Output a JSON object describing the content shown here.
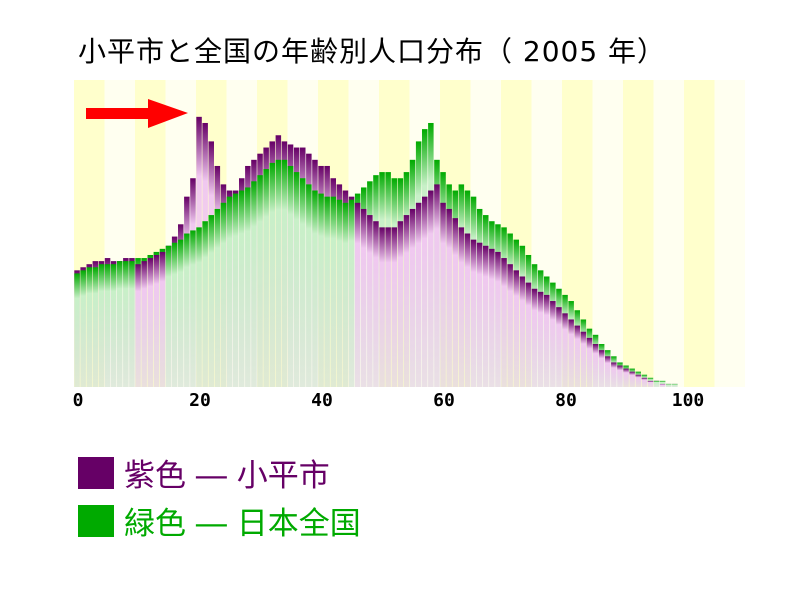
{
  "title": "小平市と全国の年齢別人口分布（ 2005 年）",
  "legend": [
    {
      "text": "紫色 ― 小平市",
      "color": "#660066"
    },
    {
      "text": "緑色 ― 日本全国",
      "color": "#00aa00"
    }
  ],
  "chart_data": {
    "type": "bar",
    "x_ticks": [
      0,
      20,
      40,
      60,
      80,
      100
    ],
    "x_tick_labels": [
      "0",
      "20",
      "40",
      "60",
      "80",
      "100"
    ],
    "xlim": [
      0,
      110
    ],
    "ylim": [
      0,
      100
    ],
    "colors": {
      "kodaira": "#660066",
      "japan": "#00aa00",
      "band_light": "#ffffcc",
      "band_pale": "#fffff0"
    },
    "annotation": {
      "type": "arrow",
      "points_to_age": 20,
      "color": "#ff0000"
    },
    "series": [
      {
        "key": "kodaira",
        "values": [
          38,
          39,
          40,
          41,
          41,
          42,
          41,
          41,
          42,
          42,
          40,
          41,
          42,
          43,
          44,
          46,
          49,
          53,
          62,
          68,
          88,
          86,
          80,
          72,
          66,
          64,
          64,
          68,
          72,
          74,
          76,
          78,
          80,
          82,
          80,
          79,
          78,
          78,
          76,
          74,
          72,
          72,
          68,
          66,
          64,
          62,
          60,
          58,
          56,
          54,
          52,
          52,
          52,
          54,
          56,
          58,
          60,
          62,
          64,
          66,
          60,
          58,
          55,
          52,
          50,
          48,
          47,
          46,
          45,
          44,
          42,
          40,
          38,
          36,
          34,
          32,
          31,
          30,
          28,
          26,
          24,
          22,
          20,
          18,
          16,
          14,
          12,
          10,
          8,
          7,
          6,
          5,
          4,
          3,
          2,
          2,
          1,
          1,
          1,
          0,
          0
        ]
      },
      {
        "key": "japan",
        "values": [
          37,
          38,
          39,
          39,
          40,
          40,
          40,
          41,
          41,
          41,
          42,
          42,
          43,
          44,
          45,
          46,
          47,
          48,
          50,
          51,
          52,
          54,
          56,
          58,
          60,
          62,
          63,
          64,
          65,
          67,
          69,
          71,
          73,
          74,
          74,
          72,
          70,
          68,
          66,
          64,
          63,
          62,
          62,
          61,
          60,
          61,
          63,
          65,
          67,
          69,
          70,
          70,
          68,
          68,
          70,
          74,
          80,
          84,
          86,
          74,
          70,
          66,
          64,
          66,
          64,
          62,
          58,
          56,
          54,
          53,
          52,
          50,
          48,
          46,
          43,
          40,
          38,
          36,
          34,
          32,
          30,
          28,
          25,
          22,
          19,
          17,
          14,
          12,
          10,
          8,
          7,
          6,
          5,
          4,
          3,
          2,
          2,
          1,
          1,
          0,
          0
        ]
      }
    ]
  }
}
